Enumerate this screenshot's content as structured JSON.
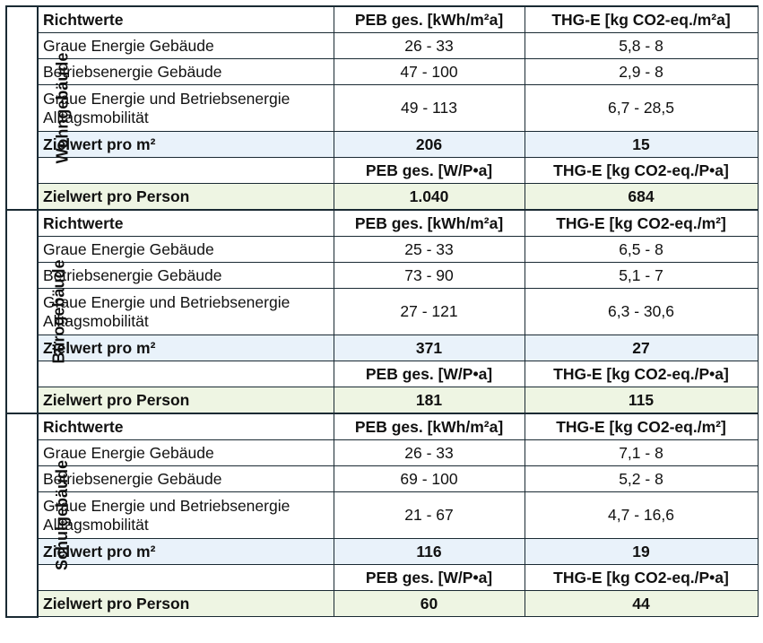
{
  "sections": [
    {
      "label": "Wohngebäude",
      "header": {
        "title": "Richtwerte",
        "peb": "PEB ges. [kWh/m²a]",
        "thg": "THG-E [kg CO2-eq./m²a]"
      },
      "rows": [
        {
          "label": "Graue Energie Gebäude",
          "peb": "26 - 33",
          "thg": "5,8 - 8"
        },
        {
          "label": "Betriebsenergie Gebäude",
          "peb": "47 - 100",
          "thg": "2,9 - 8"
        },
        {
          "label": "Graue Energie und Betriebsenergie Alltagsmobilität",
          "peb": "49 - 113",
          "thg": "6,7 - 28,5"
        }
      ],
      "target_m2": {
        "label": "Zielwert pro m²",
        "peb": "206",
        "thg": "15"
      },
      "person_header": {
        "peb": "PEB ges. [W/P•a]",
        "thg": "THG-E [kg CO2-eq./P•a]"
      },
      "target_person": {
        "label": "Zielwert pro Person",
        "peb": "1.040",
        "thg": "684"
      }
    },
    {
      "label": "Bürogebäude",
      "header": {
        "title": "Richtwerte",
        "peb": "PEB ges. [kWh/m²a]",
        "thg": "THG-E [kg CO2-eq./m²]"
      },
      "rows": [
        {
          "label": "Graue Energie Gebäude",
          "peb": "25 - 33",
          "thg": "6,5 - 8"
        },
        {
          "label": "Betriebsenergie Gebäude",
          "peb": "73 - 90",
          "thg": "5,1 - 7"
        },
        {
          "label": "Graue Energie und Betriebsenergie Alltagsmobilität",
          "peb": "27 - 121",
          "thg": "6,3 - 30,6"
        }
      ],
      "target_m2": {
        "label": "Zielwert pro m²",
        "peb": "371",
        "thg": "27"
      },
      "person_header": {
        "peb": "PEB ges. [W/P•a]",
        "thg": "THG-E [kg CO2-eq./P•a]"
      },
      "target_person": {
        "label": "Zielwert pro Person",
        "peb": "181",
        "thg": "115"
      }
    },
    {
      "label": "Schulgebäude",
      "header": {
        "title": "Richtwerte",
        "peb": "PEB ges. [kWh/m²a]",
        "thg": "THG-E [kg CO2-eq./m²]"
      },
      "rows": [
        {
          "label": "Graue Energie Gebäude",
          "peb": "26 - 33",
          "thg": "7,1 - 8"
        },
        {
          "label": "Betriebsenergie Gebäude",
          "peb": "69 - 100",
          "thg": "5,2 - 8"
        },
        {
          "label": "Graue Energie und Betriebsenergie Alltagsmobilität",
          "peb": "21 - 67",
          "thg": "4,7 - 16,6"
        }
      ],
      "target_m2": {
        "label": "Zielwert pro m²",
        "peb": "116",
        "thg": "19"
      },
      "person_header": {
        "peb": "PEB ges. [W/P•a]",
        "thg": "THG-E [kg CO2-eq./P•a]"
      },
      "target_person": {
        "label": "Zielwert pro Person",
        "peb": "60",
        "thg": "44"
      }
    }
  ]
}
